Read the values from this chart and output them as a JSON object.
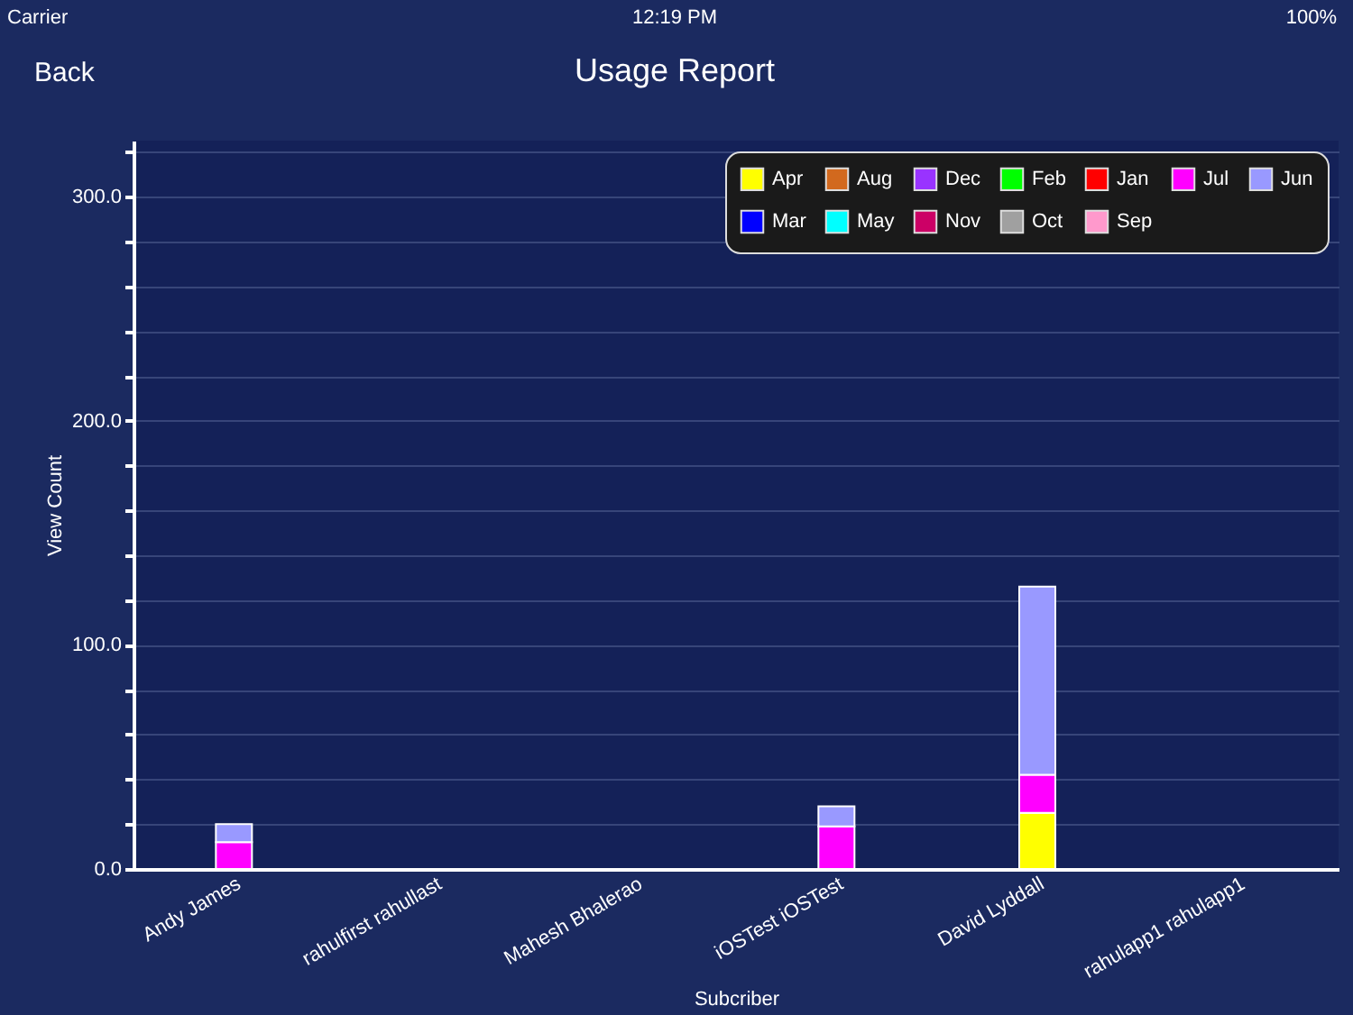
{
  "chart_data": {
    "type": "bar",
    "title": "Usage Report",
    "annotations": [
      "Carrier",
      "12:19 PM",
      "100%",
      "Back"
    ],
    "xlabel": "Subcriber",
    "ylabel": "View Count",
    "categories": [
      "Andy James",
      "rahulfirst rahullast",
      "Mahesh Bhalerao",
      "iOSTest iOSTest",
      "David Lyddall",
      "rahulapp1 rahulapp1"
    ],
    "stacked": true,
    "series": [
      {
        "name": "Apr",
        "color": "#ffff00",
        "values": [
          null,
          null,
          null,
          null,
          25,
          null
        ]
      },
      {
        "name": "Aug",
        "color": "#d2691e",
        "values": [
          null,
          null,
          null,
          null,
          null,
          null
        ]
      },
      {
        "name": "Dec",
        "color": "#9933ff",
        "values": [
          null,
          null,
          null,
          null,
          null,
          null
        ]
      },
      {
        "name": "Feb",
        "color": "#00ff00",
        "values": [
          null,
          null,
          null,
          null,
          null,
          null
        ]
      },
      {
        "name": "Jan",
        "color": "#ff0000",
        "values": [
          null,
          null,
          null,
          null,
          null,
          null
        ]
      },
      {
        "name": "Jul",
        "color": "#ff00ff",
        "values": [
          12,
          null,
          null,
          19,
          17,
          null
        ]
      },
      {
        "name": "Jun",
        "color": "#9999ff",
        "values": [
          8,
          null,
          null,
          9,
          84,
          null
        ]
      },
      {
        "name": "Mar",
        "color": "#0000ff",
        "values": [
          null,
          null,
          null,
          null,
          null,
          null
        ]
      },
      {
        "name": "May",
        "color": "#00ffff",
        "values": [
          null,
          null,
          null,
          null,
          null,
          null
        ]
      },
      {
        "name": "Nov",
        "color": "#cc0066",
        "values": [
          null,
          null,
          null,
          null,
          null,
          null
        ]
      },
      {
        "name": "Oct",
        "color": "#a0a0a0",
        "values": [
          null,
          null,
          null,
          null,
          null,
          null
        ]
      },
      {
        "name": "Sep",
        "color": "#ff99cc",
        "values": [
          null,
          null,
          null,
          null,
          null,
          null
        ]
      }
    ],
    "ylim": [
      0,
      325
    ],
    "yticks": [
      {
        "value": 0,
        "label": "0.0"
      },
      {
        "value": 20,
        "label": null
      },
      {
        "value": 40,
        "label": null
      },
      {
        "value": 60,
        "label": null
      },
      {
        "value": 80,
        "label": null
      },
      {
        "value": 100,
        "label": "100.0"
      },
      {
        "value": 120,
        "label": null
      },
      {
        "value": 140,
        "label": null
      },
      {
        "value": 160,
        "label": null
      },
      {
        "value": 180,
        "label": null
      },
      {
        "value": 200,
        "label": "200.0"
      },
      {
        "value": 220,
        "label": null
      },
      {
        "value": 240,
        "label": null
      },
      {
        "value": 260,
        "label": null
      },
      {
        "value": 280,
        "label": null
      },
      {
        "value": 300,
        "label": "300.0"
      },
      {
        "value": 320,
        "label": null
      }
    ],
    "grid": "y",
    "legend": "top right"
  }
}
